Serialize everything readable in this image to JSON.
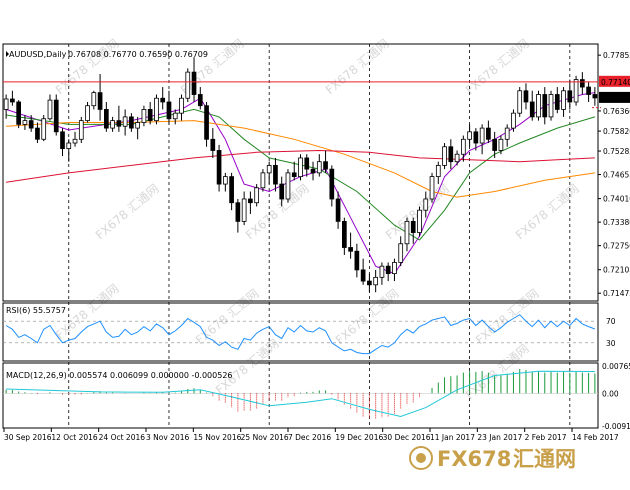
{
  "header": {
    "symbol_timeframe": "AUDUSD,Daily",
    "ohlc": "0.76708 0.76770 0.76590 0.76709"
  },
  "rsi_panel": {
    "label": "RSI(6) 55.5757"
  },
  "macd_panel": {
    "label": "MACD(12,26,9) 0.005574 0.006099 0.000000 -0.000526"
  },
  "watermark": {
    "brand": "FX678",
    "cn": "汇通网"
  },
  "chart_data": [
    {
      "type": "candlestick",
      "title": "AUDUSD,Daily",
      "ylim": [
        0.7132,
        0.781
      ],
      "y_ticks": [
        "0.77855",
        "0.77140",
        "0.76709",
        "0.76360",
        "0.75820",
        "0.75285",
        "0.74655",
        "0.74010",
        "0.73380",
        "0.72750",
        "0.72105",
        "0.71475"
      ],
      "x_tick_labels": [
        "30 Sep 2016",
        "12 Oct 2016",
        "24 Oct 2016",
        "3 Nov 2016",
        "15 Nov 2016",
        "25 Nov 2016",
        "7 Dec 2016",
        "19 Dec 2016",
        "30 Dec 2016",
        "11 Jan 2017",
        "23 Jan 2017",
        "2 Feb 2017",
        "14 Feb 2017"
      ],
      "horizontal_line": 0.7714,
      "current_price": 0.76709,
      "candles": [
        [
          0.764,
          0.768,
          0.7615,
          0.7668
        ],
        [
          0.7668,
          0.769,
          0.765,
          0.766
        ],
        [
          0.766,
          0.7665,
          0.759,
          0.76
        ],
        [
          0.76,
          0.7625,
          0.7585,
          0.761
        ],
        [
          0.761,
          0.7625,
          0.758,
          0.759
        ],
        [
          0.759,
          0.7605,
          0.755,
          0.756
        ],
        [
          0.756,
          0.7625,
          0.7555,
          0.7615
        ],
        [
          0.7615,
          0.768,
          0.761,
          0.7665
        ],
        [
          0.7665,
          0.768,
          0.757,
          0.758
        ],
        [
          0.758,
          0.759,
          0.7515,
          0.7535
        ],
        [
          0.7535,
          0.756,
          0.75,
          0.755
        ],
        [
          0.755,
          0.758,
          0.754,
          0.756
        ],
        [
          0.756,
          0.762,
          0.755,
          0.761
        ],
        [
          0.761,
          0.766,
          0.7605,
          0.765
        ],
        [
          0.765,
          0.769,
          0.764,
          0.7685
        ],
        [
          0.7685,
          0.7735,
          0.761,
          0.764
        ],
        [
          0.764,
          0.766,
          0.758,
          0.759
        ],
        [
          0.759,
          0.762,
          0.758,
          0.761
        ],
        [
          0.761,
          0.765,
          0.758,
          0.7595
        ],
        [
          0.7595,
          0.764,
          0.757,
          0.762
        ],
        [
          0.762,
          0.763,
          0.758,
          0.759
        ],
        [
          0.759,
          0.762,
          0.756,
          0.7605
        ],
        [
          0.7605,
          0.765,
          0.7595,
          0.764
        ],
        [
          0.764,
          0.766,
          0.76,
          0.761
        ],
        [
          0.761,
          0.768,
          0.76,
          0.767
        ],
        [
          0.767,
          0.77,
          0.764,
          0.766
        ],
        [
          0.766,
          0.769,
          0.76,
          0.7615
        ],
        [
          0.7615,
          0.764,
          0.76,
          0.763
        ],
        [
          0.763,
          0.768,
          0.761,
          0.767
        ],
        [
          0.767,
          0.775,
          0.766,
          0.774
        ],
        [
          0.774,
          0.778,
          0.766,
          0.768
        ],
        [
          0.768,
          0.77,
          0.764,
          0.765
        ],
        [
          0.765,
          0.766,
          0.754,
          0.756
        ],
        [
          0.756,
          0.759,
          0.751,
          0.753
        ],
        [
          0.753,
          0.7545,
          0.742,
          0.744
        ],
        [
          0.744,
          0.747,
          0.742,
          0.746
        ],
        [
          0.746,
          0.747,
          0.737,
          0.739
        ],
        [
          0.739,
          0.74,
          0.731,
          0.734
        ],
        [
          0.734,
          0.742,
          0.733,
          0.74
        ],
        [
          0.74,
          0.742,
          0.736,
          0.739
        ],
        [
          0.739,
          0.744,
          0.738,
          0.743
        ],
        [
          0.743,
          0.748,
          0.742,
          0.747
        ],
        [
          0.747,
          0.75,
          0.744,
          0.749
        ],
        [
          0.749,
          0.751,
          0.742,
          0.744
        ],
        [
          0.744,
          0.746,
          0.738,
          0.74
        ],
        [
          0.74,
          0.748,
          0.739,
          0.747
        ],
        [
          0.747,
          0.75,
          0.745,
          0.746
        ],
        [
          0.746,
          0.752,
          0.745,
          0.751
        ],
        [
          0.751,
          0.752,
          0.746,
          0.748
        ],
        [
          0.748,
          0.75,
          0.745,
          0.747
        ],
        [
          0.747,
          0.752,
          0.746,
          0.75
        ],
        [
          0.75,
          0.753,
          0.747,
          0.748
        ],
        [
          0.748,
          0.749,
          0.738,
          0.74
        ],
        [
          0.74,
          0.742,
          0.732,
          0.734
        ],
        [
          0.734,
          0.735,
          0.725,
          0.727
        ],
        [
          0.727,
          0.731,
          0.724,
          0.726
        ],
        [
          0.726,
          0.728,
          0.719,
          0.721
        ],
        [
          0.721,
          0.724,
          0.717,
          0.718
        ],
        [
          0.718,
          0.72,
          0.715,
          0.717
        ],
        [
          0.717,
          0.721,
          0.715,
          0.719
        ],
        [
          0.719,
          0.723,
          0.717,
          0.722
        ],
        [
          0.722,
          0.723,
          0.718,
          0.72
        ],
        [
          0.72,
          0.724,
          0.718,
          0.723
        ],
        [
          0.723,
          0.73,
          0.722,
          0.728
        ],
        [
          0.728,
          0.735,
          0.726,
          0.734
        ],
        [
          0.734,
          0.735,
          0.728,
          0.731
        ],
        [
          0.731,
          0.738,
          0.73,
          0.737
        ],
        [
          0.737,
          0.742,
          0.735,
          0.74
        ],
        [
          0.74,
          0.747,
          0.739,
          0.746
        ],
        [
          0.746,
          0.75,
          0.744,
          0.749
        ],
        [
          0.749,
          0.755,
          0.748,
          0.754
        ],
        [
          0.754,
          0.756,
          0.748,
          0.75
        ],
        [
          0.75,
          0.753,
          0.749,
          0.752
        ],
        [
          0.752,
          0.757,
          0.75,
          0.756
        ],
        [
          0.756,
          0.76,
          0.754,
          0.758
        ],
        [
          0.758,
          0.759,
          0.753,
          0.755
        ],
        [
          0.755,
          0.76,
          0.752,
          0.759
        ],
        [
          0.759,
          0.761,
          0.755,
          0.756
        ],
        [
          0.756,
          0.758,
          0.751,
          0.753
        ],
        [
          0.753,
          0.757,
          0.752,
          0.756
        ],
        [
          0.756,
          0.76,
          0.754,
          0.759
        ],
        [
          0.759,
          0.764,
          0.758,
          0.763
        ],
        [
          0.763,
          0.77,
          0.762,
          0.769
        ],
        [
          0.769,
          0.771,
          0.764,
          0.766
        ],
        [
          0.766,
          0.769,
          0.761,
          0.762
        ],
        [
          0.762,
          0.769,
          0.761,
          0.768
        ],
        [
          0.768,
          0.77,
          0.76,
          0.762
        ],
        [
          0.762,
          0.769,
          0.761,
          0.768
        ],
        [
          0.768,
          0.77,
          0.763,
          0.764
        ],
        [
          0.764,
          0.77,
          0.762,
          0.769
        ],
        [
          0.769,
          0.772,
          0.764,
          0.766
        ],
        [
          0.766,
          0.773,
          0.765,
          0.772
        ],
        [
          0.772,
          0.774,
          0.768,
          0.77
        ],
        [
          0.77,
          0.7715,
          0.766,
          0.768
        ],
        [
          0.768,
          0.77,
          0.765,
          0.76709
        ]
      ],
      "moving_averages": [
        {
          "color": "#9900cc",
          "points": [
            [
              0,
              0.764
            ],
            [
              10,
              0.7585
            ],
            [
              20,
              0.761
            ],
            [
              28,
              0.764
            ],
            [
              31,
              0.767
            ],
            [
              35,
              0.756
            ],
            [
              38,
              0.744
            ],
            [
              42,
              0.742
            ],
            [
              47,
              0.746
            ],
            [
              51,
              0.748
            ],
            [
              55,
              0.735
            ],
            [
              59,
              0.722
            ],
            [
              62,
              0.72
            ],
            [
              66,
              0.73
            ],
            [
              70,
              0.746
            ],
            [
              74,
              0.753
            ],
            [
              78,
              0.756
            ],
            [
              82,
              0.76
            ],
            [
              86,
              0.765
            ],
            [
              92,
              0.768
            ],
            [
              94,
              0.7685
            ]
          ]
        },
        {
          "color": "#228822",
          "points": [
            [
              0,
              0.7625
            ],
            [
              10,
              0.76
            ],
            [
              20,
              0.76
            ],
            [
              30,
              0.764
            ],
            [
              34,
              0.762
            ],
            [
              38,
              0.756
            ],
            [
              42,
              0.751
            ],
            [
              50,
              0.748
            ],
            [
              56,
              0.742
            ],
            [
              62,
              0.733
            ],
            [
              66,
              0.729
            ],
            [
              70,
              0.737
            ],
            [
              74,
              0.747
            ],
            [
              78,
              0.752
            ],
            [
              82,
              0.755
            ],
            [
              88,
              0.759
            ],
            [
              94,
              0.762
            ]
          ]
        },
        {
          "color": "#ff8800",
          "points": [
            [
              0,
              0.7595
            ],
            [
              10,
              0.7605
            ],
            [
              20,
              0.7605
            ],
            [
              30,
              0.761
            ],
            [
              38,
              0.759
            ],
            [
              46,
              0.756
            ],
            [
              54,
              0.752
            ],
            [
              62,
              0.747
            ],
            [
              68,
              0.742
            ],
            [
              72,
              0.7405
            ],
            [
              78,
              0.742
            ],
            [
              86,
              0.745
            ],
            [
              94,
              0.747
            ]
          ]
        },
        {
          "color": "#dd1133",
          "points": [
            [
              0,
              0.7445
            ],
            [
              10,
              0.747
            ],
            [
              20,
              0.749
            ],
            [
              30,
              0.751
            ],
            [
              40,
              0.7525
            ],
            [
              50,
              0.753
            ],
            [
              58,
              0.7525
            ],
            [
              66,
              0.751
            ],
            [
              74,
              0.7505
            ],
            [
              82,
              0.75
            ],
            [
              88,
              0.7505
            ],
            [
              94,
              0.751
            ]
          ]
        }
      ]
    },
    {
      "type": "line",
      "title": "RSI(6) 55.5757",
      "ylim": [
        0,
        100
      ],
      "y_ticks": [
        70,
        30
      ],
      "right_labels": [
        "100",
        "70",
        "30",
        "0"
      ],
      "series": [
        {
          "values": [
            62,
            55,
            40,
            45,
            38,
            30,
            55,
            62,
            45,
            30,
            35,
            38,
            50,
            60,
            65,
            70,
            50,
            40,
            42,
            55,
            45,
            50,
            60,
            52,
            65,
            58,
            45,
            52,
            62,
            75,
            68,
            60,
            40,
            35,
            25,
            32,
            22,
            18,
            38,
            35,
            48,
            55,
            60,
            45,
            38,
            58,
            50,
            62,
            52,
            50,
            58,
            52,
            30,
            22,
            15,
            18,
            12,
            10,
            10,
            18,
            25,
            22,
            30,
            45,
            55,
            48,
            60,
            65,
            72,
            75,
            78,
            62,
            66,
            72,
            75,
            62,
            72,
            60,
            50,
            58,
            68,
            75,
            82,
            70,
            60,
            72,
            58,
            70,
            60,
            70,
            62,
            75,
            65,
            60,
            55.6
          ]
        }
      ]
    },
    {
      "type": "macd",
      "title": "MACD(12,26,9) 0.005574 0.006099 0.000000 -0.000526",
      "ylim": [
        -0.00915,
        0.00765
      ],
      "y_ticks": [
        "0.00765",
        "0.00",
        "-0.00915"
      ],
      "histogram": [
        0.001,
        0.0009,
        0.0005,
        0.0003,
        0.0001,
        -0.0002,
        0.0,
        0.0003,
        0.0,
        -0.0003,
        -0.0005,
        -0.0005,
        -0.0003,
        0.0001,
        0.0004,
        0.0006,
        0.0004,
        0.0002,
        0.0,
        0.0001,
        0.0,
        0.0,
        0.0002,
        0.0001,
        0.0003,
        0.0004,
        0.0002,
        0.0002,
        0.0005,
        0.0012,
        0.0014,
        0.001,
        0.0002,
        -0.0008,
        -0.002,
        -0.0028,
        -0.004,
        -0.0052,
        -0.005,
        -0.0048,
        -0.0042,
        -0.0032,
        -0.0022,
        -0.002,
        -0.002,
        -0.0012,
        -0.0008,
        0.0002,
        0.0004,
        0.0004,
        0.0008,
        0.0008,
        -0.0004,
        -0.0018,
        -0.0032,
        -0.0042,
        -0.0055,
        -0.0065,
        -0.0072,
        -0.0072,
        -0.0068,
        -0.0065,
        -0.0058,
        -0.0045,
        -0.003,
        -0.0025,
        -0.0012,
        0.0,
        0.0015,
        0.003,
        0.0045,
        0.0048,
        0.005,
        0.0058,
        0.0062,
        0.006,
        0.0062,
        0.0058,
        0.005,
        0.005,
        0.0055,
        0.006,
        0.0068,
        0.0065,
        0.006,
        0.0062,
        0.0058,
        0.006,
        0.0058,
        0.006,
        0.0058,
        0.006,
        0.0058,
        0.0057,
        0.005574
      ],
      "signal": [
        [
          0,
          0.0012
        ],
        [
          15,
          0.0004
        ],
        [
          25,
          0.0003
        ],
        [
          31,
          0.001
        ],
        [
          36,
          -0.001
        ],
        [
          42,
          -0.0035
        ],
        [
          48,
          -0.0025
        ],
        [
          52,
          -0.0015
        ],
        [
          58,
          -0.0045
        ],
        [
          63,
          -0.0065
        ],
        [
          67,
          -0.004
        ],
        [
          72,
          0.001
        ],
        [
          78,
          0.005
        ],
        [
          85,
          0.0062
        ],
        [
          94,
          0.0061
        ]
      ]
    }
  ]
}
